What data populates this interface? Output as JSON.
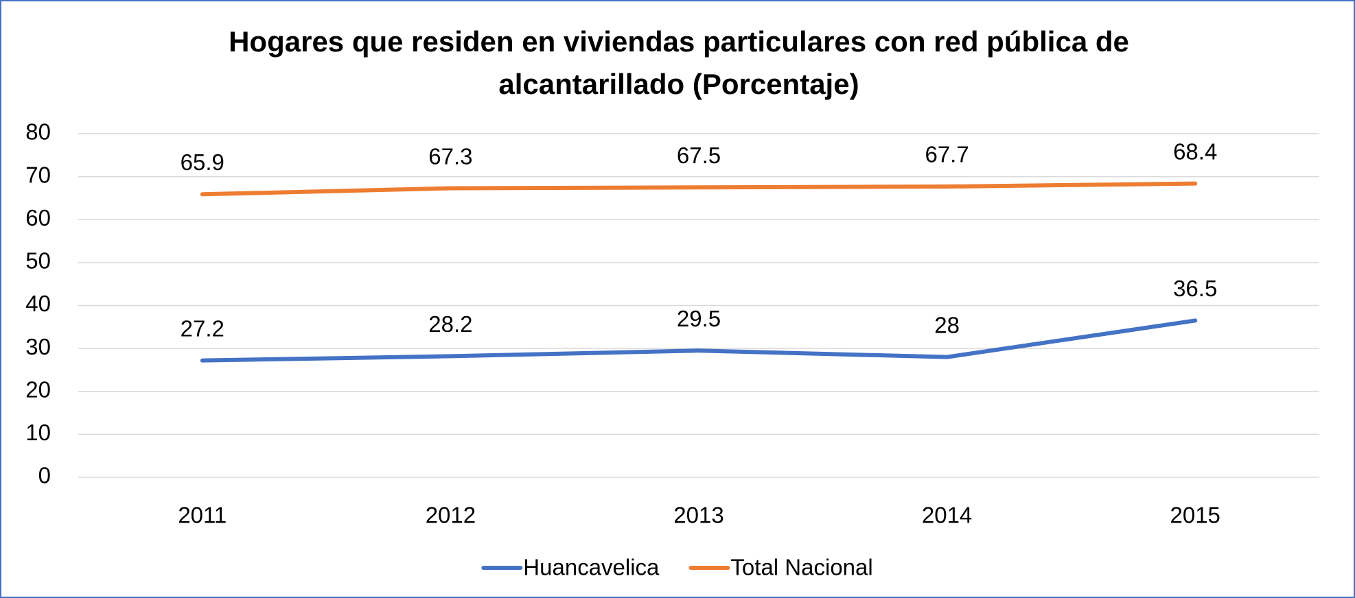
{
  "chart_data": {
    "type": "line",
    "title": "Hogares que residen en viviendas particulares con red pública de alcantarillado (Porcentaje)",
    "categories": [
      "2011",
      "2012",
      "2013",
      "2014",
      "2015"
    ],
    "series": [
      {
        "name": "Huancavelica",
        "color": "#4472c4",
        "values": [
          27.2,
          28.2,
          29.5,
          28,
          36.5
        ]
      },
      {
        "name": "Total Nacional",
        "color": "#ed7d31",
        "values": [
          65.9,
          67.3,
          67.5,
          67.7,
          68.4
        ]
      }
    ],
    "ylim": [
      0,
      80
    ],
    "yticks": [
      0,
      10,
      20,
      30,
      40,
      50,
      60,
      70,
      80
    ],
    "grid": true,
    "legend": "bottom"
  }
}
